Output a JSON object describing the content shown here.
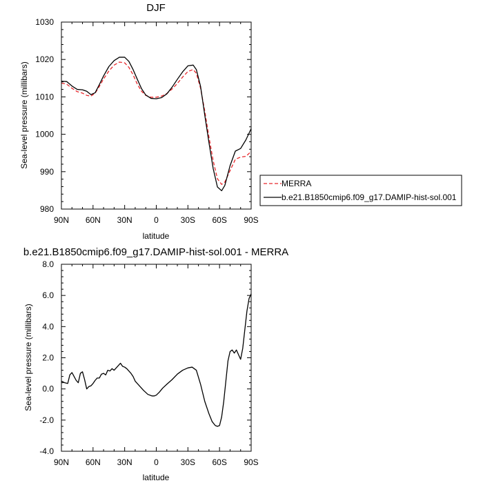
{
  "chart_data": [
    {
      "type": "line",
      "title": "DJF",
      "xlabel": "latitude",
      "ylabel": "Sea-level pressure (millibars)",
      "x_ticks": [
        90,
        60,
        30,
        0,
        -30,
        -60,
        -90
      ],
      "x_tick_labels": [
        "90N",
        "60N",
        "30N",
        "0",
        "30S",
        "60S",
        "90S"
      ],
      "xlim": [
        90,
        -90
      ],
      "y_ticks": [
        980,
        990,
        1000,
        1010,
        1020,
        1030
      ],
      "y_tick_labels": [
        "980",
        "990",
        "1000",
        "1010",
        "1020",
        "1030"
      ],
      "ylim": [
        980,
        1030
      ],
      "legend_position": "right",
      "series": [
        {
          "name": "MERRA",
          "color": "#e8262a",
          "dash": "dashed",
          "x": [
            90,
            85,
            80,
            75,
            70,
            66,
            62,
            58,
            54,
            50,
            45,
            40,
            35,
            30,
            26,
            22,
            18,
            14,
            10,
            5,
            0,
            -5,
            -10,
            -15,
            -20,
            -25,
            -30,
            -35,
            -38,
            -42,
            -46,
            -50,
            -54,
            -58,
            -62,
            -65,
            -70,
            -75,
            -80,
            -85,
            -90
          ],
          "y": [
            1013.7,
            1013.4,
            1012.3,
            1011.4,
            1011.0,
            1010.4,
            1010.2,
            1011.0,
            1012.8,
            1014.8,
            1016.9,
            1018.5,
            1019.3,
            1019.1,
            1017.9,
            1015.9,
            1013.4,
            1011.5,
            1010.4,
            1009.9,
            1009.9,
            1010.2,
            1010.9,
            1012.1,
            1013.6,
            1015.3,
            1016.8,
            1017.3,
            1016.3,
            1012.3,
            1006.2,
            999.2,
            992.9,
            988.1,
            986.6,
            987.2,
            990.3,
            993.3,
            993.9,
            994.1,
            995.4
          ]
        },
        {
          "name": "b.e21.B1850cmip6.f09_g17.DAMIP-hist-sol.001",
          "color": "#000000",
          "dash": "solid",
          "x": [
            90,
            85,
            80,
            75,
            70,
            66,
            62,
            58,
            54,
            50,
            45,
            40,
            35,
            30,
            26,
            22,
            18,
            14,
            10,
            5,
            0,
            -5,
            -10,
            -15,
            -20,
            -25,
            -30,
            -35,
            -38,
            -42,
            -46,
            -50,
            -54,
            -58,
            -62,
            -65,
            -70,
            -75,
            -80,
            -85,
            -90
          ],
          "y": [
            1014.2,
            1014.1,
            1012.9,
            1012.0,
            1011.9,
            1011.5,
            1010.6,
            1011.1,
            1013.3,
            1015.6,
            1018.1,
            1019.7,
            1020.6,
            1020.6,
            1019.5,
            1017.3,
            1014.7,
            1012.2,
            1010.5,
            1009.6,
            1009.5,
            1009.8,
            1010.8,
            1012.6,
            1014.7,
            1016.7,
            1018.3,
            1018.5,
            1017.3,
            1012.8,
            1005.1,
            997.7,
            990.8,
            985.9,
            984.9,
            986.3,
            991.6,
            995.5,
            996.2,
            998.5,
            1001.5
          ]
        }
      ]
    },
    {
      "type": "line",
      "title": "b.e21.B1850cmip6.f09_g17.DAMIP-hist-sol.001 - MERRA",
      "xlabel": "latitude",
      "ylabel": "Sea-level pressure (millibars)",
      "x_ticks": [
        90,
        60,
        30,
        0,
        -30,
        -60,
        -90
      ],
      "x_tick_labels": [
        "90N",
        "60N",
        "30N",
        "0",
        "30S",
        "60S",
        "90S"
      ],
      "xlim": [
        90,
        -90
      ],
      "y_ticks": [
        -4,
        -2,
        0,
        2,
        4,
        6,
        8
      ],
      "y_tick_labels": [
        "-4.0",
        "-2.0",
        "0.0",
        "2.0",
        "4.0",
        "6.0",
        "8.0"
      ],
      "ylim": [
        -4,
        8
      ],
      "series": [
        {
          "color": "#000000",
          "dash": "solid",
          "x": [
            90,
            87,
            84,
            82,
            80,
            78,
            76,
            74,
            72,
            70,
            68,
            66,
            64,
            62,
            60,
            58,
            56,
            54,
            52,
            50,
            48,
            46,
            44,
            42,
            40,
            38,
            36,
            34,
            32,
            30,
            28,
            26,
            24,
            22,
            20,
            16,
            12,
            8,
            4,
            2,
            0,
            -3,
            -6,
            -10,
            -15,
            -20,
            -25,
            -30,
            -34,
            -38,
            -42,
            -46,
            -50,
            -53,
            -56,
            -58,
            -60,
            -62,
            -64,
            -66,
            -68,
            -70,
            -72,
            -74,
            -76,
            -78,
            -80,
            -82,
            -84,
            -86,
            -88,
            -90
          ],
          "y": [
            0.5,
            0.4,
            0.35,
            0.9,
            1.05,
            0.8,
            0.55,
            0.4,
            1.0,
            1.1,
            0.6,
            0.0,
            0.15,
            0.2,
            0.35,
            0.55,
            0.7,
            0.7,
            0.95,
            1.0,
            0.9,
            1.2,
            1.15,
            1.3,
            1.2,
            1.35,
            1.5,
            1.65,
            1.45,
            1.4,
            1.3,
            1.15,
            1.0,
            0.8,
            0.5,
            0.2,
            -0.1,
            -0.35,
            -0.45,
            -0.45,
            -0.4,
            -0.2,
            0.05,
            0.3,
            0.6,
            0.95,
            1.2,
            1.35,
            1.4,
            1.2,
            0.3,
            -0.8,
            -1.6,
            -2.1,
            -2.35,
            -2.4,
            -2.35,
            -1.8,
            -0.8,
            0.5,
            1.8,
            2.4,
            2.5,
            2.3,
            2.5,
            2.2,
            1.9,
            2.6,
            3.8,
            5.0,
            5.8,
            6.1
          ]
        }
      ]
    }
  ]
}
